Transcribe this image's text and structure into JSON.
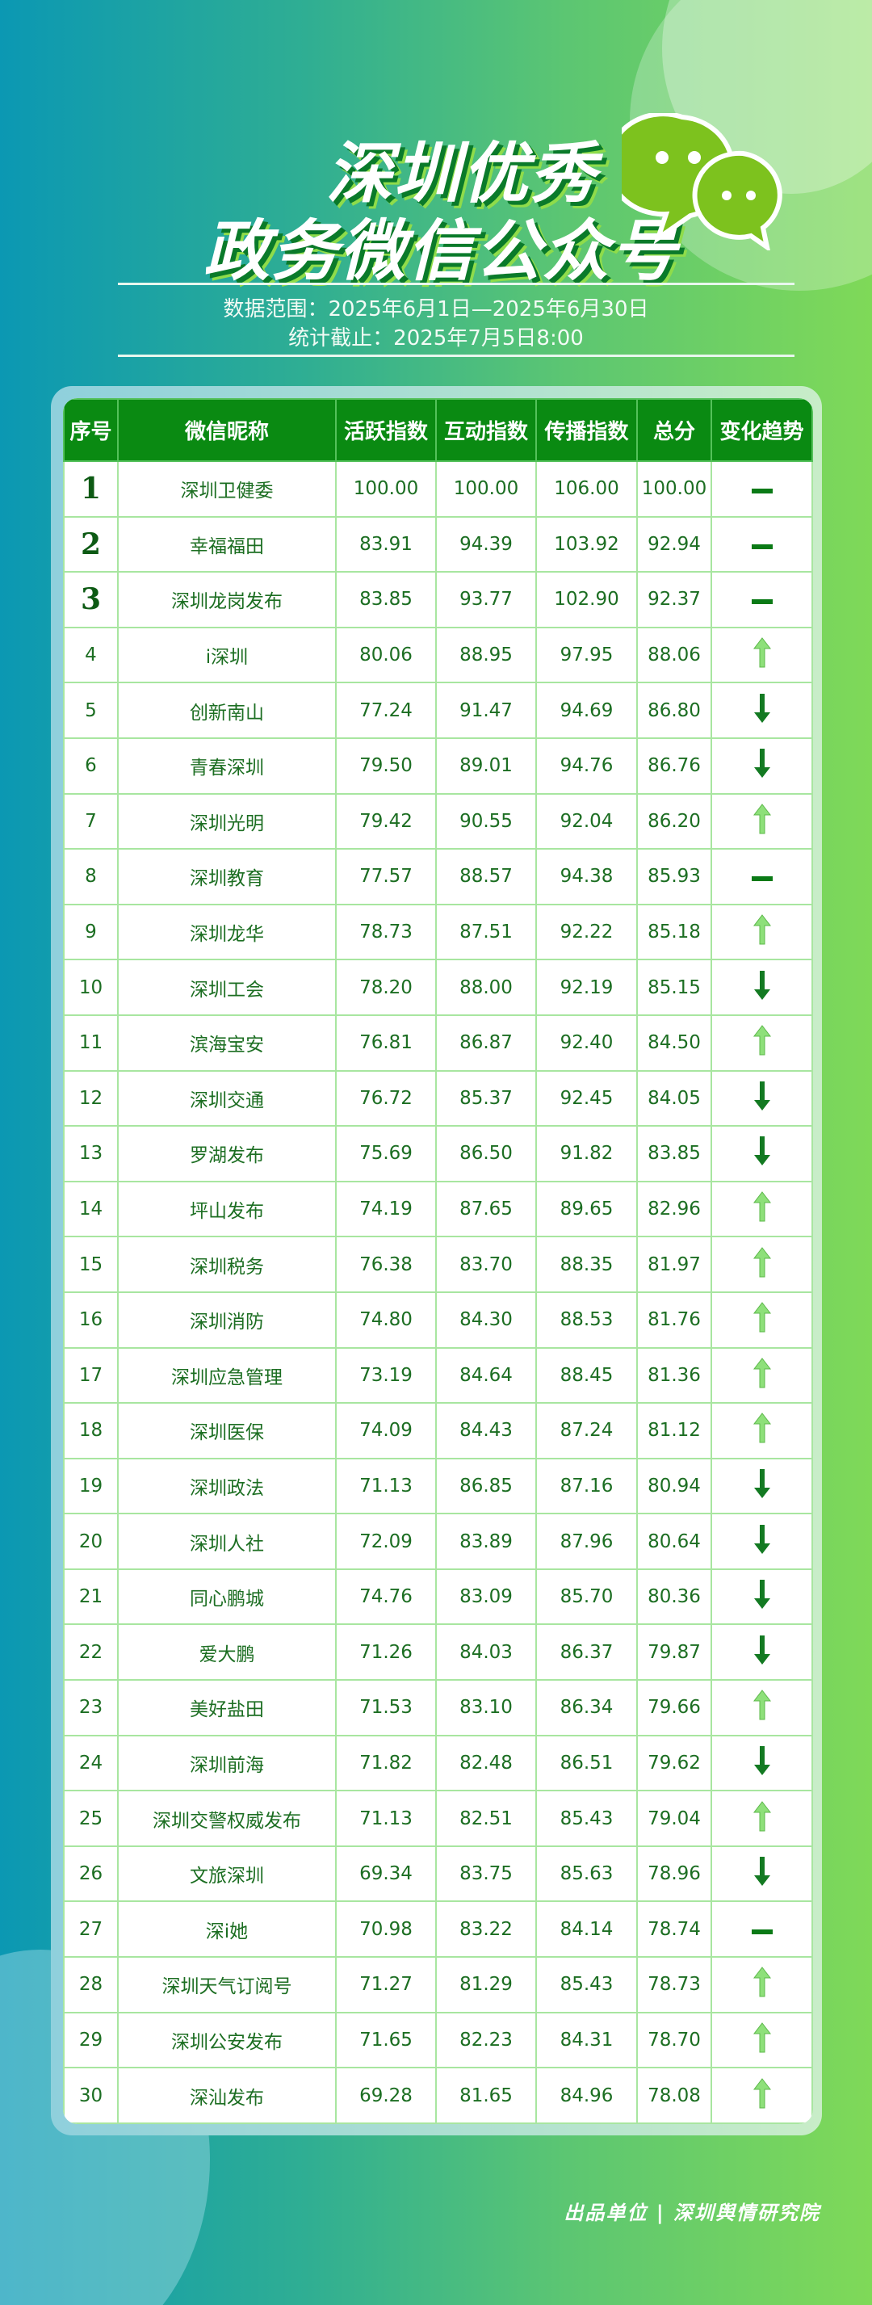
{
  "title": {
    "line1": "深圳优秀",
    "line2": "政务微信公众号"
  },
  "subtitle": {
    "range": "数据范围：2025年6月1日—2025年6月30日",
    "cutoff": "统计截止：2025年7月5日8:00"
  },
  "colors": {
    "header": "#0a8a12",
    "text": "#1c6e22",
    "arrow_up": "#8ee07a",
    "arrow_down": "#137a22",
    "flat": "#0a7a16"
  },
  "icon": "wechat-icon",
  "table": {
    "headers": [
      "序号",
      "微信昵称",
      "活跃指数",
      "互动指数",
      "传播指数",
      "总分",
      "变化趋势"
    ],
    "rows": [
      [
        "1",
        "深圳卫健委",
        "100.00",
        "100.00",
        "106.00",
        "100.00",
        "flat"
      ],
      [
        "2",
        "幸福福田",
        "83.91",
        "94.39",
        "103.92",
        "92.94",
        "flat"
      ],
      [
        "3",
        "深圳龙岗发布",
        "83.85",
        "93.77",
        "102.90",
        "92.37",
        "flat"
      ],
      [
        "4",
        "i深圳",
        "80.06",
        "88.95",
        "97.95",
        "88.06",
        "up"
      ],
      [
        "5",
        "创新南山",
        "77.24",
        "91.47",
        "94.69",
        "86.80",
        "down"
      ],
      [
        "6",
        "青春深圳",
        "79.50",
        "89.01",
        "94.76",
        "86.76",
        "down"
      ],
      [
        "7",
        "深圳光明",
        "79.42",
        "90.55",
        "92.04",
        "86.20",
        "up"
      ],
      [
        "8",
        "深圳教育",
        "77.57",
        "88.57",
        "94.38",
        "85.93",
        "flat"
      ],
      [
        "9",
        "深圳龙华",
        "78.73",
        "87.51",
        "92.22",
        "85.18",
        "up"
      ],
      [
        "10",
        "深圳工会",
        "78.20",
        "88.00",
        "92.19",
        "85.15",
        "down"
      ],
      [
        "11",
        "滨海宝安",
        "76.81",
        "86.87",
        "92.40",
        "84.50",
        "up"
      ],
      [
        "12",
        "深圳交通",
        "76.72",
        "85.37",
        "92.45",
        "84.05",
        "down"
      ],
      [
        "13",
        "罗湖发布",
        "75.69",
        "86.50",
        "91.82",
        "83.85",
        "down"
      ],
      [
        "14",
        "坪山发布",
        "74.19",
        "87.65",
        "89.65",
        "82.96",
        "up"
      ],
      [
        "15",
        "深圳税务",
        "76.38",
        "83.70",
        "88.35",
        "81.97",
        "up"
      ],
      [
        "16",
        "深圳消防",
        "74.80",
        "84.30",
        "88.53",
        "81.76",
        "up"
      ],
      [
        "17",
        "深圳应急管理",
        "73.19",
        "84.64",
        "88.45",
        "81.36",
        "up"
      ],
      [
        "18",
        "深圳医保",
        "74.09",
        "84.43",
        "87.24",
        "81.12",
        "up"
      ],
      [
        "19",
        "深圳政法",
        "71.13",
        "86.85",
        "87.16",
        "80.94",
        "down"
      ],
      [
        "20",
        "深圳人社",
        "72.09",
        "83.89",
        "87.96",
        "80.64",
        "down"
      ],
      [
        "21",
        "同心鹏城",
        "74.76",
        "83.09",
        "85.70",
        "80.36",
        "down"
      ],
      [
        "22",
        "爱大鹏",
        "71.26",
        "84.03",
        "86.37",
        "79.87",
        "down"
      ],
      [
        "23",
        "美好盐田",
        "71.53",
        "83.10",
        "86.34",
        "79.66",
        "up"
      ],
      [
        "24",
        "深圳前海",
        "71.82",
        "82.48",
        "86.51",
        "79.62",
        "down"
      ],
      [
        "25",
        "深圳交警权威发布",
        "71.13",
        "82.51",
        "85.43",
        "79.04",
        "up"
      ],
      [
        "26",
        "文旅深圳",
        "69.34",
        "83.75",
        "85.63",
        "78.96",
        "down"
      ],
      [
        "27",
        "深i她",
        "70.98",
        "83.22",
        "84.14",
        "78.74",
        "flat"
      ],
      [
        "28",
        "深圳天气订阅号",
        "71.27",
        "81.29",
        "85.43",
        "78.73",
        "up"
      ],
      [
        "29",
        "深圳公安发布",
        "71.65",
        "82.23",
        "84.31",
        "78.70",
        "up"
      ],
      [
        "30",
        "深汕发布",
        "69.28",
        "81.65",
        "84.96",
        "78.08",
        "up"
      ]
    ]
  },
  "footer": "出品单位 | 深圳舆情研究院"
}
